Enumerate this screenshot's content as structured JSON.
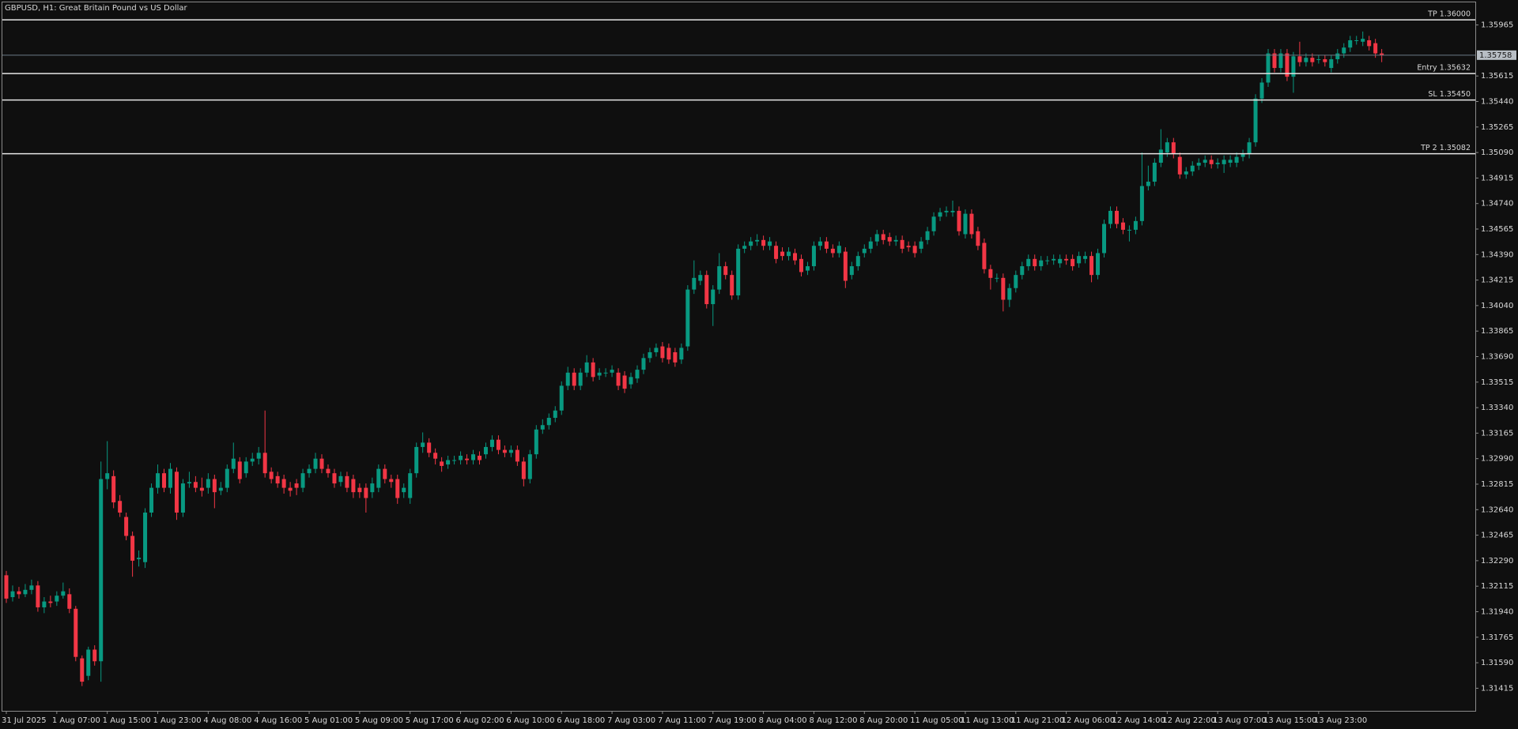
{
  "chart_data": {
    "type": "candlestick",
    "title": "GBPUSD, H1:  Great Britain Pound vs US Dollar",
    "up_color": "#089981",
    "down_color": "#f23645",
    "grid": false,
    "categories": [
      "31 Jul 2025",
      null,
      null,
      null,
      null,
      null,
      null,
      null,
      "1 Aug 07:00",
      null,
      null,
      null,
      null,
      null,
      null,
      null,
      "1 Aug 15:00",
      null,
      null,
      null,
      null,
      null,
      null,
      null,
      "1 Aug 23:00",
      null,
      null,
      null,
      null,
      null,
      null,
      null,
      "4 Aug 08:00",
      null,
      null,
      null,
      null,
      null,
      null,
      null,
      "4 Aug 16:00",
      null,
      null,
      null,
      null,
      null,
      null,
      null,
      "5 Aug 01:00",
      null,
      null,
      null,
      null,
      null,
      null,
      null,
      "5 Aug 09:00",
      null,
      null,
      null,
      null,
      null,
      null,
      null,
      "5 Aug 17:00",
      null,
      null,
      null,
      null,
      null,
      null,
      null,
      "6 Aug 02:00",
      null,
      null,
      null,
      null,
      null,
      null,
      null,
      "6 Aug 10:00",
      null,
      null,
      null,
      null,
      null,
      null,
      null,
      "6 Aug 18:00",
      null,
      null,
      null,
      null,
      null,
      null,
      null,
      "7 Aug 03:00",
      null,
      null,
      null,
      null,
      null,
      null,
      null,
      "7 Aug 11:00",
      null,
      null,
      null,
      null,
      null,
      null,
      null,
      "7 Aug 19:00",
      null,
      null,
      null,
      null,
      null,
      null,
      null,
      "8 Aug 04:00",
      null,
      null,
      null,
      null,
      null,
      null,
      null,
      "8 Aug 12:00",
      null,
      null,
      null,
      null,
      null,
      null,
      null,
      "8 Aug 20:00",
      null,
      null,
      null,
      null,
      null,
      null,
      null,
      "11 Aug 05:00",
      null,
      null,
      null,
      null,
      null,
      null,
      null,
      "11 Aug 13:00",
      null,
      null,
      null,
      null,
      null,
      null,
      null,
      "11 Aug 21:00",
      null,
      null,
      null,
      null,
      null,
      null,
      null,
      "12 Aug 06:00",
      null,
      null,
      null,
      null,
      null,
      null,
      null,
      "12 Aug 14:00",
      null,
      null,
      null,
      null,
      null,
      null,
      null,
      "12 Aug 22:00",
      null,
      null,
      null,
      null,
      null,
      null,
      null,
      "13 Aug 07:00",
      null,
      null,
      null,
      null,
      null,
      null,
      null,
      "13 Aug 15:00",
      null,
      null,
      null,
      null,
      null,
      null,
      null,
      "13 Aug 23:00",
      null,
      null,
      null,
      null,
      null,
      null,
      null,
      null,
      null,
      null
    ],
    "open": [
      1.3219,
      1.3204,
      1.3208,
      1.3206,
      1.3209,
      1.3212,
      1.3197,
      1.3201,
      1.3201,
      1.3205,
      1.3206,
      1.3196,
      1.3162,
      1.315,
      1.3168,
      1.316,
      1.3285,
      1.3287,
      1.327,
      1.3259,
      1.3246,
      1.323,
      1.3228,
      1.3262,
      1.3279,
      1.3289,
      1.3279,
      1.329,
      1.3262,
      1.3282,
      1.3283,
      1.3279,
      1.3279,
      1.3285,
      1.3277,
      1.3279,
      1.3292,
      1.3297,
      1.3289,
      1.3297,
      1.3299,
      1.3303,
      1.329,
      1.3287,
      1.3285,
      1.3279,
      1.3282,
      1.3279,
      1.3289,
      1.3292,
      1.3299,
      1.3292,
      1.3289,
      1.3283,
      1.3287,
      1.3285,
      1.3279,
      1.3279,
      1.3276,
      1.3279,
      1.3292,
      1.3285,
      1.3285,
      1.3276,
      1.3272,
      1.3289,
      1.3307,
      1.331,
      1.3303,
      1.3297,
      1.3295,
      1.3298,
      1.3298,
      1.3299,
      1.3298,
      1.3301,
      1.3302,
      1.3307,
      1.3312,
      1.3305,
      1.3303,
      1.3305,
      1.3297,
      1.3285,
      1.3302,
      1.3319,
      1.3322,
      1.3327,
      1.3332,
      1.3349,
      1.3358,
      1.3349,
      1.3358,
      1.3365,
      1.3356,
      1.3358,
      1.3358,
      1.3358,
      1.3356,
      1.335,
      1.3354,
      1.336,
      1.3368,
      1.3372,
      1.3376,
      1.3375,
      1.3372,
      1.3367,
      1.3376,
      1.3415,
      1.3421,
      1.3425,
      1.3405,
      1.3415,
      1.3431,
      1.3425,
      1.3411,
      1.3443,
      1.3445,
      1.3448,
      1.3449,
      1.3445,
      1.3445,
      1.3441,
      1.3438,
      1.344,
      1.3436,
      1.3428,
      1.3431,
      1.3445,
      1.3448,
      1.3443,
      1.344,
      1.3441,
      1.3425,
      1.3431,
      1.344,
      1.3443,
      1.3448,
      1.3453,
      1.3451,
      1.3448,
      1.3449,
      1.3445,
      1.3445,
      1.3443,
      1.3449,
      1.3455,
      1.3465,
      1.3468,
      1.3468,
      1.3469,
      1.3453,
      1.3467,
      1.3455,
      1.3447,
      1.3429,
      1.3423,
      1.3423,
      1.3408,
      1.3416,
      1.3425,
      1.3431,
      1.3436,
      1.3431,
      1.3435,
      1.3435,
      1.3433,
      1.3436,
      1.3436,
      1.3433,
      1.3436,
      1.3438,
      1.3425,
      1.344,
      1.346,
      1.3469,
      1.3461,
      1.3456,
      1.3456,
      1.3462,
      1.3486,
      1.3489,
      1.3502,
      1.3509,
      1.3516,
      1.3506,
      1.3494,
      1.3496,
      1.35,
      1.3502,
      1.3504,
      1.3501,
      1.3501,
      1.3502,
      1.3502,
      1.3506,
      1.3508,
      1.3516,
      1.3546,
      1.3557,
      1.3577,
      1.3567,
      1.3577,
      1.3561,
      1.3575,
      1.3571,
      1.3574,
      1.3573,
      1.3573,
      1.3567,
      1.3573,
      1.3577,
      1.3581,
      1.3586,
      1.3585,
      1.3586,
      1.3584,
      1.3577
    ],
    "high": [
      1.3222,
      1.3212,
      1.3211,
      1.3213,
      1.3216,
      1.3215,
      1.3204,
      1.3205,
      1.3208,
      1.3214,
      1.321,
      1.3198,
      1.3164,
      1.317,
      1.3171,
      1.3297,
      1.3311,
      1.3291,
      1.3274,
      1.3262,
      1.3249,
      1.3236,
      1.3265,
      1.3282,
      1.3295,
      1.3292,
      1.3296,
      1.3293,
      1.3285,
      1.329,
      1.3287,
      1.3286,
      1.3289,
      1.3288,
      1.3283,
      1.3295,
      1.331,
      1.33,
      1.33,
      1.3303,
      1.3307,
      1.3332,
      1.3293,
      1.329,
      1.3288,
      1.3283,
      1.3285,
      1.3292,
      1.3295,
      1.3303,
      1.3302,
      1.3295,
      1.3292,
      1.329,
      1.329,
      1.3288,
      1.3282,
      1.3282,
      1.3286,
      1.3295,
      1.3295,
      1.3288,
      1.3288,
      1.3282,
      1.3292,
      1.331,
      1.3317,
      1.3313,
      1.3306,
      1.33,
      1.3301,
      1.3301,
      1.3304,
      1.3302,
      1.3305,
      1.3304,
      1.331,
      1.3315,
      1.3315,
      1.3308,
      1.3308,
      1.3308,
      1.33,
      1.3305,
      1.3322,
      1.3326,
      1.333,
      1.3335,
      1.3352,
      1.3362,
      1.3361,
      1.3361,
      1.337,
      1.3368,
      1.3361,
      1.3361,
      1.3363,
      1.3361,
      1.3359,
      1.3358,
      1.3363,
      1.3371,
      1.3375,
      1.3378,
      1.3379,
      1.3378,
      1.3375,
      1.3378,
      1.3418,
      1.3435,
      1.3428,
      1.3428,
      1.3418,
      1.344,
      1.3434,
      1.3428,
      1.3446,
      1.3448,
      1.3451,
      1.3453,
      1.3452,
      1.3451,
      1.3448,
      1.3444,
      1.3444,
      1.3443,
      1.3439,
      1.3434,
      1.3448,
      1.3451,
      1.3451,
      1.3446,
      1.3448,
      1.3444,
      1.3434,
      1.3441,
      1.3446,
      1.3451,
      1.3456,
      1.3456,
      1.3454,
      1.3452,
      1.3452,
      1.3448,
      1.3448,
      1.3451,
      1.3458,
      1.3468,
      1.3471,
      1.3472,
      1.3476,
      1.3472,
      1.347,
      1.347,
      1.3458,
      1.345,
      1.3432,
      1.3426,
      1.3426,
      1.3419,
      1.3428,
      1.3434,
      1.3439,
      1.3439,
      1.3438,
      1.3438,
      1.3439,
      1.3439,
      1.3439,
      1.3439,
      1.3441,
      1.3441,
      1.3441,
      1.3443,
      1.3463,
      1.3472,
      1.3472,
      1.3464,
      1.3459,
      1.3465,
      1.3509,
      1.35,
      1.3505,
      1.3525,
      1.3519,
      1.3519,
      1.3509,
      1.3499,
      1.3503,
      1.3505,
      1.3507,
      1.3507,
      1.3505,
      1.3507,
      1.3507,
      1.3509,
      1.3511,
      1.3519,
      1.3549,
      1.356,
      1.358,
      1.358,
      1.358,
      1.358,
      1.3578,
      1.3585,
      1.3577,
      1.3577,
      1.3576,
      1.3576,
      1.3576,
      1.358,
      1.3584,
      1.3589,
      1.3589,
      1.3592,
      1.3589,
      1.3587,
      1.358
    ],
    "low": [
      1.32,
      1.3201,
      1.3203,
      1.3204,
      1.3206,
      1.3194,
      1.3193,
      1.3197,
      1.3198,
      1.3203,
      1.3193,
      1.316,
      1.3143,
      1.3147,
      1.3157,
      1.3146,
      1.3278,
      1.3265,
      1.3259,
      1.3243,
      1.3218,
      1.3225,
      1.3224,
      1.3259,
      1.3275,
      1.3276,
      1.3275,
      1.3257,
      1.3259,
      1.3279,
      1.3276,
      1.3273,
      1.3275,
      1.3265,
      1.3274,
      1.3276,
      1.3289,
      1.3282,
      1.3286,
      1.3294,
      1.3295,
      1.3286,
      1.3282,
      1.3279,
      1.3275,
      1.3273,
      1.3274,
      1.3276,
      1.3286,
      1.3289,
      1.3289,
      1.3286,
      1.3279,
      1.328,
      1.3276,
      1.3272,
      1.3272,
      1.3262,
      1.3272,
      1.3276,
      1.3282,
      1.3279,
      1.3268,
      1.3272,
      1.3268,
      1.3286,
      1.3303,
      1.33,
      1.3295,
      1.329,
      1.3292,
      1.3295,
      1.3295,
      1.3295,
      1.3295,
      1.3295,
      1.3299,
      1.3304,
      1.3302,
      1.33,
      1.33,
      1.3294,
      1.328,
      1.3282,
      1.3299,
      1.3316,
      1.3319,
      1.3324,
      1.3329,
      1.3346,
      1.3346,
      1.3346,
      1.3355,
      1.3352,
      1.3353,
      1.3355,
      1.3355,
      1.3346,
      1.3344,
      1.3347,
      1.3351,
      1.3357,
      1.3365,
      1.3369,
      1.3365,
      1.3364,
      1.3362,
      1.3364,
      1.3373,
      1.3412,
      1.3418,
      1.3402,
      1.339,
      1.3412,
      1.3422,
      1.3408,
      1.3408,
      1.344,
      1.3442,
      1.3445,
      1.3442,
      1.3442,
      1.3433,
      1.3435,
      1.3435,
      1.3432,
      1.3424,
      1.3425,
      1.3428,
      1.3442,
      1.344,
      1.3437,
      1.3437,
      1.3416,
      1.3422,
      1.3428,
      1.3437,
      1.344,
      1.3445,
      1.3446,
      1.3445,
      1.3445,
      1.344,
      1.3441,
      1.3437,
      1.344,
      1.3446,
      1.3452,
      1.3462,
      1.3465,
      1.3465,
      1.3452,
      1.345,
      1.345,
      1.3442,
      1.3426,
      1.3415,
      1.342,
      1.34,
      1.3403,
      1.3413,
      1.3422,
      1.3428,
      1.3428,
      1.3428,
      1.3432,
      1.3432,
      1.343,
      1.3432,
      1.3428,
      1.343,
      1.3433,
      1.342,
      1.3422,
      1.3437,
      1.3457,
      1.3457,
      1.3453,
      1.3448,
      1.3453,
      1.3459,
      1.3483,
      1.3486,
      1.3499,
      1.3506,
      1.3505,
      1.3491,
      1.3491,
      1.3493,
      1.3497,
      1.3499,
      1.3498,
      1.3498,
      1.3495,
      1.3499,
      1.3499,
      1.3503,
      1.3505,
      1.3513,
      1.3543,
      1.3554,
      1.3564,
      1.3564,
      1.3558,
      1.355,
      1.3568,
      1.3568,
      1.3568,
      1.357,
      1.3568,
      1.3564,
      1.357,
      1.3574,
      1.3578,
      1.3583,
      1.3582,
      1.3579,
      1.3574,
      1.3571
    ],
    "close": [
      1.3203,
      1.3208,
      1.3206,
      1.3209,
      1.3212,
      1.3197,
      1.3201,
      1.32,
      1.3205,
      1.3208,
      1.3196,
      1.3163,
      1.3146,
      1.3168,
      1.316,
      1.3285,
      1.3289,
      1.3269,
      1.3262,
      1.3246,
      1.3229,
      1.3231,
      1.3262,
      1.3279,
      1.3289,
      1.3279,
      1.3292,
      1.3262,
      1.3282,
      1.3283,
      1.3279,
      1.3277,
      1.3285,
      1.3276,
      1.3279,
      1.3292,
      1.3299,
      1.3285,
      1.3297,
      1.3299,
      1.3303,
      1.3289,
      1.3285,
      1.3282,
      1.3279,
      1.3277,
      1.3279,
      1.3289,
      1.3292,
      1.3299,
      1.3292,
      1.3289,
      1.3282,
      1.3287,
      1.3279,
      1.3276,
      1.3276,
      1.3272,
      1.3282,
      1.3292,
      1.3285,
      1.3283,
      1.3272,
      1.3279,
      1.3289,
      1.3307,
      1.331,
      1.3303,
      1.3299,
      1.3294,
      1.3298,
      1.3298,
      1.3301,
      1.3298,
      1.3302,
      1.3298,
      1.3307,
      1.3312,
      1.3305,
      1.3303,
      1.3305,
      1.3297,
      1.3285,
      1.3302,
      1.3319,
      1.3322,
      1.3327,
      1.3332,
      1.3349,
      1.3358,
      1.3349,
      1.3358,
      1.3365,
      1.3355,
      1.3358,
      1.3358,
      1.336,
      1.3349,
      1.3347,
      1.3355,
      1.336,
      1.3368,
      1.3372,
      1.3375,
      1.3368,
      1.3367,
      1.3365,
      1.3375,
      1.3415,
      1.3423,
      1.3425,
      1.3405,
      1.3415,
      1.3431,
      1.3425,
      1.3411,
      1.3443,
      1.3445,
      1.3448,
      1.3449,
      1.3445,
      1.3448,
      1.3436,
      1.3438,
      1.3441,
      1.3435,
      1.3427,
      1.3431,
      1.3445,
      1.3448,
      1.3443,
      1.344,
      1.3445,
      1.3421,
      1.3431,
      1.3438,
      1.3443,
      1.3448,
      1.3453,
      1.3449,
      1.3448,
      1.3449,
      1.3443,
      1.3444,
      1.344,
      1.3448,
      1.3455,
      1.3465,
      1.3468,
      1.3469,
      1.3469,
      1.3455,
      1.3467,
      1.3453,
      1.3445,
      1.3429,
      1.3423,
      1.3423,
      1.3408,
      1.3416,
      1.3425,
      1.3431,
      1.3436,
      1.3431,
      1.3435,
      1.3435,
      1.3436,
      1.3436,
      1.3435,
      1.3431,
      1.3438,
      1.3438,
      1.3425,
      1.344,
      1.346,
      1.3469,
      1.346,
      1.3456,
      1.3456,
      1.3462,
      1.3486,
      1.3489,
      1.3502,
      1.3511,
      1.3516,
      1.3508,
      1.3494,
      1.3496,
      1.35,
      1.3502,
      1.3504,
      1.3501,
      1.3502,
      1.3504,
      1.3504,
      1.3506,
      1.3508,
      1.3516,
      1.3546,
      1.3557,
      1.3577,
      1.3567,
      1.3577,
      1.3561,
      1.3575,
      1.3571,
      1.3574,
      1.3571,
      1.3573,
      1.3571,
      1.3573,
      1.3577,
      1.3581,
      1.3586,
      1.3586,
      1.3587,
      1.3582,
      1.3577,
      1.35758
    ],
    "ylim": [
      1.3126,
      1.3612
    ],
    "yticks": [
      1.35965,
      1.35615,
      {
        "value": 1.3544,
        "label": "1.35440"
      },
      1.35265,
      {
        "value": 1.3509,
        "label": "1.35090"
      },
      1.34915,
      {
        "value": 1.3474,
        "label": "1.34740"
      },
      1.34565,
      {
        "value": 1.3439,
        "label": "1.34390"
      },
      1.34215,
      {
        "value": 1.3404,
        "label": "1.34040"
      },
      1.33865,
      {
        "value": 1.3369,
        "label": "1.33690"
      },
      1.33515,
      {
        "value": 1.3334,
        "label": "1.33340"
      },
      1.33165,
      {
        "value": 1.3299,
        "label": "1.32990"
      },
      1.32815,
      {
        "value": 1.3264,
        "label": "1.32640"
      },
      1.32465,
      {
        "value": 1.3229,
        "label": "1.32290"
      },
      1.32115,
      {
        "value": 1.3194,
        "label": "1.31940"
      },
      1.31765,
      {
        "value": 1.3159,
        "label": "1.31590"
      },
      1.31415
    ],
    "levels": [
      {
        "label": "TP 1.36000",
        "value": 1.36
      },
      {
        "label": "Entry 1.35632",
        "value": 1.35632
      },
      {
        "label": "SL 1.35450",
        "value": 1.3545
      },
      {
        "label": "TP 2 1.35082",
        "value": 1.35082
      }
    ],
    "last_price": 1.35758
  }
}
